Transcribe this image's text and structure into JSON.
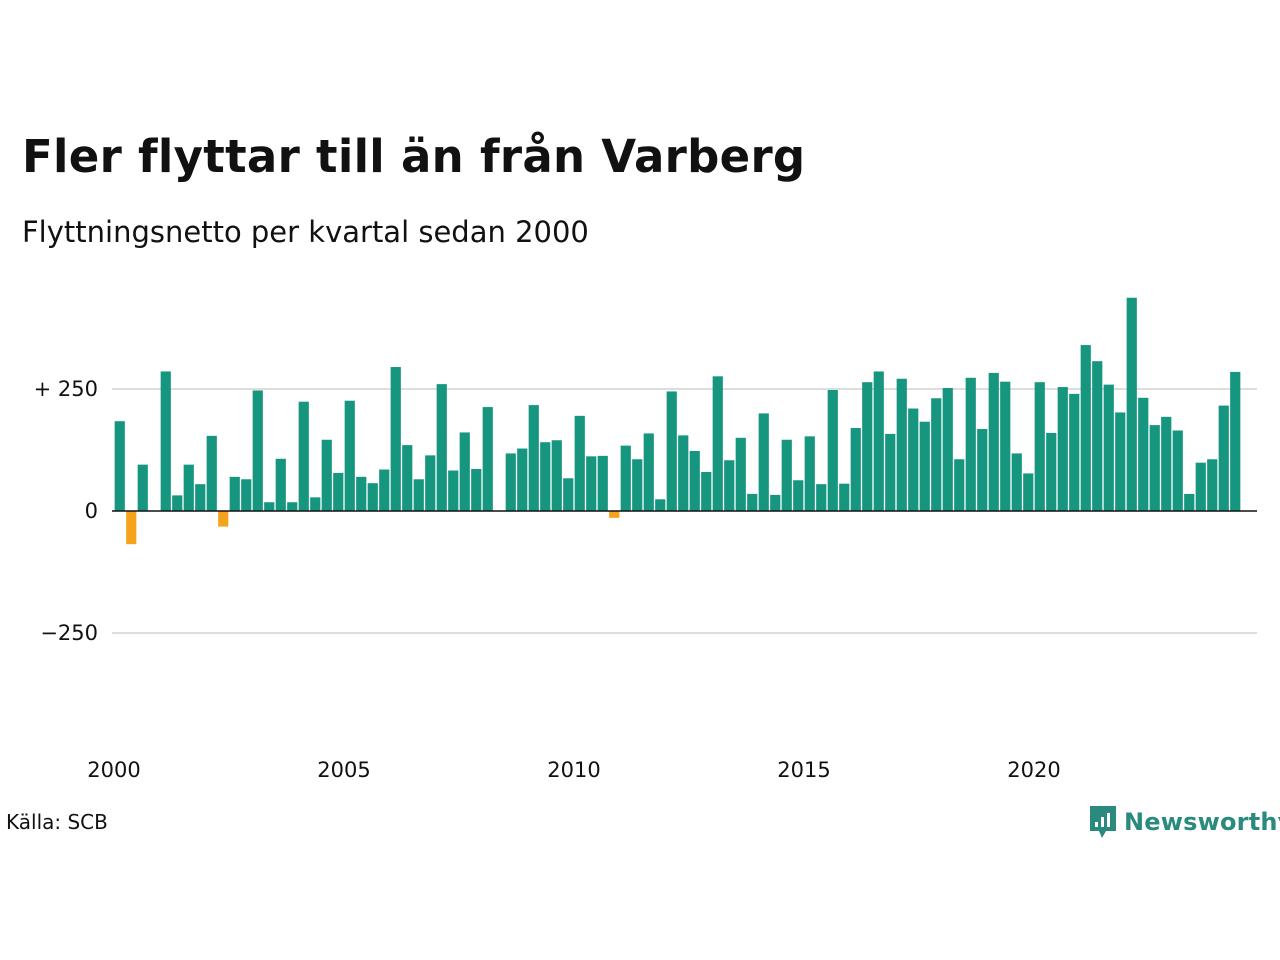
{
  "header": {
    "title": "Fler flyttar till än från Varberg",
    "subtitle": "Flyttningsnetto per kvartal sedan 2000"
  },
  "footer": {
    "source": "Källa: SCB",
    "brand": "Newsworthy"
  },
  "colors": {
    "positive": "#16967f",
    "negative": "#f5a21c",
    "grid": "#dddddd",
    "baseline": "#111111",
    "brand": "#2a8a7d"
  },
  "chart_data": {
    "type": "bar",
    "title": "Fler flyttar till än från Varberg",
    "subtitle": "Flyttningsnetto per kvartal sedan 2000",
    "xlabel": "",
    "ylabel": "",
    "ylim": [
      -440,
      440
    ],
    "xlim": [
      2000,
      2024.75
    ],
    "y_ticks": [
      {
        "value": 250,
        "label": "+ 250"
      },
      {
        "value": 0,
        "label": "0"
      },
      {
        "value": -250,
        "label": "−250"
      }
    ],
    "x_ticks": [
      {
        "value": 2000,
        "label": "2000"
      },
      {
        "value": 2005,
        "label": "2005"
      },
      {
        "value": 2010,
        "label": "2010"
      },
      {
        "value": 2015,
        "label": "2015"
      },
      {
        "value": 2020,
        "label": "2020"
      }
    ],
    "grid": true,
    "legend": "none",
    "start_year": 2000,
    "quarters_per_year": 4,
    "values": [
      184,
      -68,
      95,
      0,
      286,
      32,
      95,
      55,
      154,
      -32,
      70,
      65,
      247,
      18,
      107,
      18,
      224,
      28,
      146,
      78,
      226,
      70,
      57,
      85,
      295,
      135,
      65,
      114,
      260,
      83,
      161,
      86,
      213,
      0,
      118,
      128,
      217,
      141,
      145,
      67,
      195,
      112,
      113,
      -14,
      134,
      106,
      159,
      24,
      245,
      155,
      123,
      80,
      276,
      104,
      150,
      35,
      200,
      33,
      146,
      63,
      153,
      55,
      248,
      56,
      170,
      264,
      286,
      158,
      271,
      210,
      183,
      231,
      252,
      106,
      273,
      168,
      283,
      265,
      118,
      77,
      264,
      160,
      254,
      240,
      340,
      307,
      259,
      202,
      437,
      232,
      176,
      193,
      165,
      35,
      99,
      106,
      216,
      285
    ]
  }
}
